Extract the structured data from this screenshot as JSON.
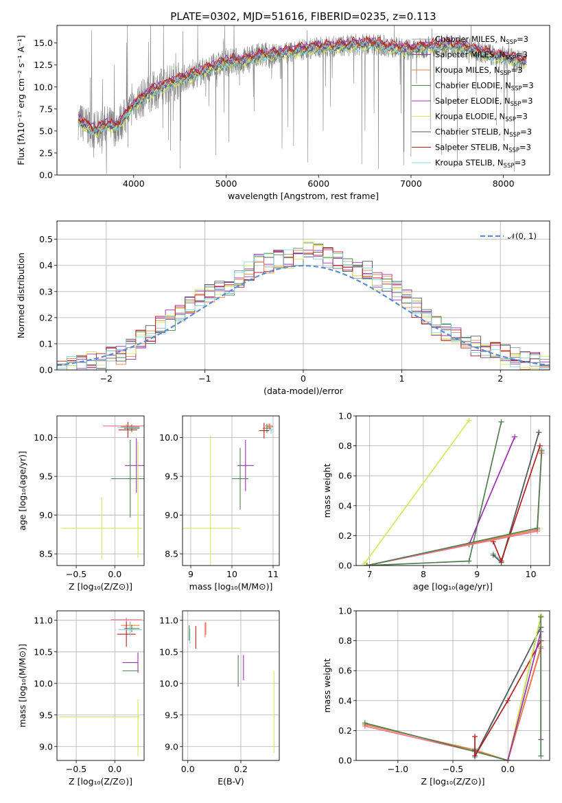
{
  "figure": {
    "title": "PLATE=0302, MJD=51616, FIBERID=0235, z=0.113"
  },
  "model_colors": {
    "Chabrier MILES": "#a0a0a0",
    "Salpeter MILES": "#9b30b0",
    "Kroupa MILES": "#e8803a",
    "Chabrier ELODIE": "#4f7f4f",
    "Salpeter ELODIE": "#9b30b0",
    "Kroupa ELODIE": "#d4e857",
    "Chabrier STELIB": "#555555",
    "Salpeter STELIB": "#b81b1b",
    "Kroupa STELIB": "#7fd4dc"
  },
  "chart_data": [
    {
      "id": "spectrum",
      "type": "line",
      "title": "PLATE=0302, MJD=51616, FIBERID=0235, z=0.113",
      "xlabel": "wavelength [Angstrom, rest frame]",
      "ylabel": "Flux [fλ10⁻¹⁷ erg cm⁻² s⁻¹ A⁻¹]",
      "xlim": [
        3170,
        8500
      ],
      "ylim": [
        0,
        17
      ],
      "xticks": [
        "4000",
        "5000",
        "6000",
        "7000",
        "8000"
      ],
      "yticks": [
        "0.0",
        "2.5",
        "5.0",
        "7.5",
        "10.0",
        "12.5",
        "15.0"
      ],
      "grid": false,
      "legend_position": "upper-right",
      "legend": [
        {
          "name": "Chabrier MILES",
          "suffix": "N",
          "sub": "SSP",
          "tail": "=3",
          "color": "#a0a0a0"
        },
        {
          "name": "Salpeter MILES",
          "suffix": "N",
          "sub": "SSP",
          "tail": "=3",
          "color": "#9b30b0"
        },
        {
          "name": "Kroupa MILES",
          "suffix": "N",
          "sub": "SSP",
          "tail": "=3",
          "color": "#e8803a"
        },
        {
          "name": "Chabrier ELODIE",
          "suffix": "N",
          "sub": "SSP",
          "tail": "=3",
          "color": "#4f7f4f"
        },
        {
          "name": "Salpeter ELODIE",
          "suffix": "N",
          "sub": "SSP",
          "tail": "=3",
          "color": "#9b30b0"
        },
        {
          "name": "Kroupa ELODIE",
          "suffix": "N",
          "sub": "SSP",
          "tail": "=3",
          "color": "#d4e857"
        },
        {
          "name": "Chabrier STELIB",
          "suffix": "N",
          "sub": "SSP",
          "tail": "=3",
          "color": "#555555"
        },
        {
          "name": "Salpeter STELIB",
          "suffix": "N",
          "sub": "SSP",
          "tail": "=3",
          "color": "#b81b1b"
        },
        {
          "name": "Kroupa STELIB",
          "suffix": "N",
          "sub": "SSP",
          "tail": "=3",
          "color": "#7fd4dc"
        }
      ],
      "data_trend": {
        "wavelength": [
          3400,
          3500,
          3600,
          3700,
          3800,
          3900,
          4000,
          4200,
          4400,
          4600,
          4800,
          5000,
          5200,
          5400,
          5600,
          5800,
          6000,
          6200,
          6400,
          6600,
          6800,
          7000,
          7200,
          7400,
          7600,
          7800,
          8000,
          8250
        ],
        "flux": [
          6.2,
          5.5,
          5.0,
          5.8,
          5.4,
          6.5,
          8.0,
          9.5,
          10.5,
          11.2,
          12.0,
          12.8,
          13.0,
          13.6,
          13.8,
          14.2,
          14.5,
          14.6,
          14.8,
          14.9,
          14.5,
          14.2,
          14.6,
          14.8,
          14.4,
          13.8,
          13.4,
          12.8
        ]
      },
      "model_offsets": [
        0.0,
        0.3,
        0.2,
        -0.2,
        0.4,
        -0.5,
        0.1,
        0.6,
        -0.3
      ]
    },
    {
      "id": "residuals",
      "type": "histogram",
      "xlabel": "(data-model)/error",
      "ylabel": "Normed distribution",
      "xlim": [
        -2.5,
        2.5
      ],
      "ylim": [
        0,
        0.57
      ],
      "xticks": [
        "−2",
        "−1",
        "0",
        "1",
        "2"
      ],
      "yticks": [
        "0.0",
        "0.1",
        "0.2",
        "0.3",
        "0.4",
        "0.5"
      ],
      "grid": true,
      "legend_position": "upper-right",
      "reference_curve": {
        "name": "𝒩(0, 1)",
        "color": "#5a8ad8",
        "style": "dashed"
      },
      "bin_width": 0.1,
      "bin_start": -2.5,
      "base_heights": [
        0.01,
        0.02,
        0.02,
        0.03,
        0.03,
        0.05,
        0.06,
        0.08,
        0.12,
        0.14,
        0.17,
        0.19,
        0.22,
        0.25,
        0.27,
        0.29,
        0.3,
        0.32,
        0.34,
        0.38,
        0.41,
        0.41,
        0.42,
        0.42,
        0.43,
        0.46,
        0.45,
        0.43,
        0.42,
        0.41,
        0.39,
        0.38,
        0.34,
        0.33,
        0.3,
        0.27,
        0.24,
        0.2,
        0.17,
        0.15,
        0.13,
        0.11,
        0.09,
        0.08,
        0.07,
        0.06,
        0.05,
        0.04,
        0.03,
        0.02
      ]
    },
    {
      "id": "age-vs-Z",
      "type": "errorbar",
      "xlabel": "Z [log₁₀(Z/Z⊙)]",
      "ylabel": "age  [log₁₀(age/yr)]",
      "xlim": [
        -0.75,
        0.38
      ],
      "ylim": [
        8.35,
        10.28
      ],
      "xticks": [
        "−0.5",
        "0.0"
      ],
      "yticks": [
        "8.5",
        "9.0",
        "9.5",
        "10.0"
      ],
      "grid": true,
      "points": [
        {
          "x": 0.15,
          "y": 10.15,
          "xerr": 0.3,
          "yerr": 0.02,
          "color": "#f07090"
        },
        {
          "x": 0.2,
          "y": 10.14,
          "xerr": 0.12,
          "yerr": 0.02,
          "color": "#e8803a"
        },
        {
          "x": 0.22,
          "y": 10.12,
          "xerr": 0.1,
          "yerr": 0.05,
          "color": "#4f7f4f"
        },
        {
          "x": 0.17,
          "y": 10.1,
          "xerr": 0.12,
          "yerr": 0.1,
          "color": "#b81b1b"
        },
        {
          "x": 0.18,
          "y": 10.13,
          "xerr": 0.15,
          "yerr": 0.03,
          "color": "#7fd4dc"
        },
        {
          "x": 0.28,
          "y": 9.64,
          "xerr": 0.15,
          "yerr": 0.35,
          "color": "#9b30b0"
        },
        {
          "x": 0.2,
          "y": 9.47,
          "xerr": 0.25,
          "yerr": 0.5,
          "color": "#4f7f4f"
        },
        {
          "x": -0.17,
          "y": 8.83,
          "xerr": 0.53,
          "yerr": 0.4,
          "color": "#d4e857"
        },
        {
          "x": 0.3,
          "y": 9.2,
          "xerr": 0.0,
          "yerr": 0.75,
          "color": "#d4e857"
        }
      ]
    },
    {
      "id": "age-vs-mass",
      "type": "errorbar",
      "xlabel": "mass [log₁₀(M/M⊙)]",
      "xlim": [
        8.8,
        11.15
      ],
      "ylim": [
        8.35,
        10.28
      ],
      "xticks": [
        "9",
        "10",
        "11"
      ],
      "yticks": [
        "8.5",
        "9.0",
        "9.5",
        "10.0"
      ],
      "grid": true,
      "points": [
        {
          "x": 10.9,
          "y": 10.15,
          "xerr": 0.1,
          "yerr": 0.03,
          "color": "#f07090"
        },
        {
          "x": 10.92,
          "y": 10.14,
          "xerr": 0.08,
          "yerr": 0.04,
          "color": "#e8803a"
        },
        {
          "x": 10.85,
          "y": 10.12,
          "xerr": 0.1,
          "yerr": 0.06,
          "color": "#4f7f4f"
        },
        {
          "x": 10.78,
          "y": 10.09,
          "xerr": 0.12,
          "yerr": 0.1,
          "color": "#b81b1b"
        },
        {
          "x": 10.95,
          "y": 10.1,
          "xerr": 0.06,
          "yerr": 0.05,
          "color": "#7fd4dc"
        },
        {
          "x": 10.33,
          "y": 9.64,
          "xerr": 0.2,
          "yerr": 0.33,
          "color": "#9b30b0"
        },
        {
          "x": 10.2,
          "y": 9.47,
          "xerr": 0.2,
          "yerr": 0.4,
          "color": "#4f7f4f"
        },
        {
          "x": 9.48,
          "y": 8.83,
          "xerr": 0.72,
          "yerr": 1.2,
          "color": "#d4e857"
        }
      ]
    },
    {
      "id": "weight-vs-age",
      "type": "line",
      "xlabel": "age  [log₁₀(age/yr)]",
      "ylabel": "mass weight",
      "xlim": [
        6.75,
        10.35
      ],
      "ylim": [
        0,
        1
      ],
      "xticks": [
        "7",
        "8",
        "9",
        "10"
      ],
      "yticks": [
        "0.0",
        "0.2",
        "0.4",
        "0.6",
        "0.8",
        "1.0"
      ],
      "grid": true,
      "series": [
        {
          "color": "#d4e857",
          "x": [
            6.9,
            8.85
          ],
          "y": [
            0.01,
            0.97
          ]
        },
        {
          "color": "#4f7f4f",
          "x": [
            6.95,
            8.85,
            9.45
          ],
          "y": [
            0.0,
            0.03,
            0.96
          ]
        },
        {
          "color": "#9b30b0",
          "x": [
            6.95,
            8.85,
            9.7
          ],
          "y": [
            0.0,
            0.14,
            0.86
          ]
        },
        {
          "color": "#7fd4dc",
          "x": [
            9.3,
            9.45,
            10.15
          ],
          "y": [
            0.08,
            0.03,
            0.89
          ]
        },
        {
          "color": "#555555",
          "x": [
            9.3,
            9.45,
            10.15
          ],
          "y": [
            0.07,
            0.02,
            0.89
          ]
        },
        {
          "color": "#b81b1b",
          "x": [
            9.3,
            9.45,
            10.17
          ],
          "y": [
            0.16,
            0.03,
            0.8
          ]
        },
        {
          "color": "#e8803a",
          "x": [
            6.95,
            10.12,
            10.2
          ],
          "y": [
            0.0,
            0.24,
            0.76
          ]
        },
        {
          "color": "#f07090",
          "x": [
            6.95,
            10.12,
            10.2
          ],
          "y": [
            0.0,
            0.23,
            0.75
          ]
        },
        {
          "color": "#4f7f4f",
          "x": [
            6.95,
            10.12,
            10.2
          ],
          "y": [
            0.0,
            0.25,
            0.77
          ]
        }
      ]
    },
    {
      "id": "mass-vs-Z",
      "type": "errorbar",
      "xlabel": "Z [log₁₀(Z/Z⊙)]",
      "ylabel": "mass [log₁₀(M/M⊙)]",
      "xlim": [
        -0.75,
        0.38
      ],
      "ylim": [
        8.78,
        11.15
      ],
      "xticks": [
        "−0.5",
        "0.0"
      ],
      "yticks": [
        "9.0",
        "9.5",
        "10.0",
        "10.5",
        "11.0"
      ],
      "grid": true,
      "points": [
        {
          "x": 0.15,
          "y": 11.01,
          "xerr": 0.2,
          "yerr": 0.03,
          "color": "#f07090"
        },
        {
          "x": 0.2,
          "y": 10.92,
          "xerr": 0.12,
          "yerr": 0.06,
          "color": "#e8803a"
        },
        {
          "x": 0.22,
          "y": 10.87,
          "xerr": 0.1,
          "yerr": 0.06,
          "color": "#4f7f4f"
        },
        {
          "x": 0.15,
          "y": 10.78,
          "xerr": 0.12,
          "yerr": 0.2,
          "color": "#b81b1b"
        },
        {
          "x": 0.2,
          "y": 10.85,
          "xerr": 0.15,
          "yerr": 0.1,
          "color": "#7fd4dc"
        },
        {
          "x": 0.3,
          "y": 10.33,
          "xerr": 0.0,
          "yerr": 0.16,
          "color": "#9b30b0"
        },
        {
          "x": 0.2,
          "y": 10.33,
          "xerr": 0.1,
          "yerr": 0.0,
          "color": "#9b30b0"
        },
        {
          "x": 0.2,
          "y": 10.2,
          "xerr": 0.1,
          "yerr": 0.0,
          "color": "#4f7f4f"
        },
        {
          "x": -0.2,
          "y": 9.47,
          "xerr": 0.52,
          "yerr": 0.0,
          "color": "#d4e857"
        },
        {
          "x": 0.3,
          "y": 9.3,
          "xerr": 0.0,
          "yerr": 0.45,
          "color": "#d4e857"
        }
      ]
    },
    {
      "id": "mass-vs-EBV",
      "type": "errorbar",
      "xlabel": "E(B-V)",
      "xlim": [
        -0.02,
        0.345
      ],
      "ylim": [
        8.78,
        11.15
      ],
      "xticks": [
        "0.0",
        "0.2"
      ],
      "yticks": [
        "9.0",
        "9.5",
        "10.0",
        "10.5",
        "11.0"
      ],
      "grid": true,
      "points": [
        {
          "x": 0.005,
          "y": 10.8,
          "xerr": 0.0,
          "yerr": 0.12,
          "color": "#4f7f4f"
        },
        {
          "x": 0.008,
          "y": 10.75,
          "xerr": 0.0,
          "yerr": 0.12,
          "color": "#7fd4dc"
        },
        {
          "x": 0.065,
          "y": 10.85,
          "xerr": 0.0,
          "yerr": 0.12,
          "color": "#f07090"
        },
        {
          "x": 0.068,
          "y": 10.87,
          "xerr": 0.0,
          "yerr": 0.1,
          "color": "#e8803a"
        },
        {
          "x": 0.03,
          "y": 10.73,
          "xerr": 0.0,
          "yerr": 0.18,
          "color": "#b81b1b"
        },
        {
          "x": 0.19,
          "y": 10.2,
          "xerr": 0.0,
          "yerr": 0.25,
          "color": "#4f7f4f"
        },
        {
          "x": 0.21,
          "y": 10.25,
          "xerr": 0.0,
          "yerr": 0.2,
          "color": "#9b30b0"
        },
        {
          "x": 0.325,
          "y": 9.55,
          "xerr": 0.0,
          "yerr": 0.65,
          "color": "#d4e857"
        }
      ]
    },
    {
      "id": "weight-vs-Z",
      "type": "line",
      "xlabel": "Z [log₁₀(Z/Z⊙)]",
      "ylabel": "mass weight",
      "xlim": [
        -1.38,
        0.38
      ],
      "ylim": [
        0,
        1
      ],
      "xticks": [
        "−1.0",
        "−0.5",
        "0.0"
      ],
      "yticks": [
        "0.0",
        "0.2",
        "0.4",
        "0.6",
        "0.8",
        "1.0"
      ],
      "grid": true,
      "series": [
        {
          "color": "#f07090",
          "x": [
            -1.3,
            -0.3,
            0.0,
            0.3
          ],
          "y": [
            0.23,
            0.06,
            0.0,
            0.75
          ]
        },
        {
          "color": "#e8803a",
          "x": [
            -1.3,
            -0.3,
            0.0,
            0.3
          ],
          "y": [
            0.24,
            0.07,
            0.0,
            0.76
          ]
        },
        {
          "color": "#4f7f4f",
          "x": [
            -1.3,
            -0.3,
            0.0,
            0.3
          ],
          "y": [
            0.25,
            0.06,
            0.0,
            0.96
          ]
        },
        {
          "color": "#7fd4dc",
          "x": [
            -0.3,
            -0.3,
            0.3
          ],
          "y": [
            0.08,
            0.02,
            0.89
          ]
        },
        {
          "color": "#555555",
          "x": [
            -0.3,
            -0.3,
            0.3
          ],
          "y": [
            0.07,
            0.03,
            0.89
          ]
        },
        {
          "color": "#b81b1b",
          "x": [
            -0.3,
            -0.3,
            0.0,
            0.3
          ],
          "y": [
            0.16,
            0.03,
            0.4,
            0.8
          ]
        },
        {
          "color": "#d4e857",
          "x": [
            0.0,
            0.3
          ],
          "y": [
            0.0,
            0.97
          ]
        },
        {
          "color": "#9b30b0",
          "x": [
            0.0,
            0.3,
            0.3
          ],
          "y": [
            0.0,
            0.86,
            0.14
          ]
        },
        {
          "color": "#4f7f4f",
          "x": [
            0.3,
            0.3
          ],
          "y": [
            0.96,
            0.03
          ]
        }
      ]
    }
  ]
}
